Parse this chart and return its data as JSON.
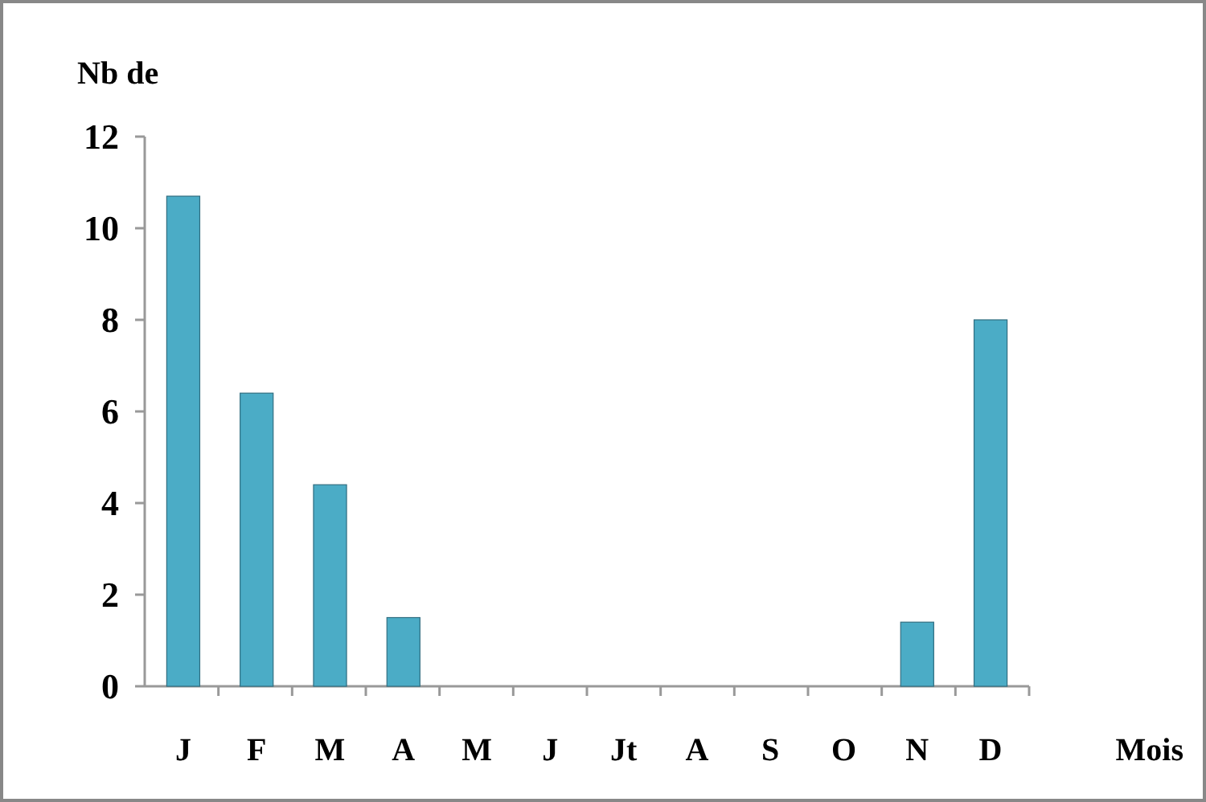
{
  "chart_data": {
    "type": "bar",
    "ylabel": "Nb de",
    "xlabel": "Mois",
    "categories": [
      "J",
      "F",
      "M",
      "A",
      "M",
      "J",
      "Jt",
      "A",
      "S",
      "O",
      "N",
      "D"
    ],
    "values": [
      10.7,
      6.4,
      4.4,
      1.5,
      0,
      0,
      0,
      0,
      0,
      0,
      1.4,
      8.0
    ],
    "color": "#4bacc6",
    "ylim": [
      0,
      12
    ],
    "yticks": [
      0,
      2,
      4,
      6,
      8,
      10,
      12
    ],
    "grid": false
  }
}
